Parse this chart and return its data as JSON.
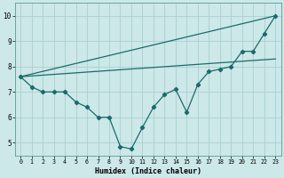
{
  "xlabel": "Humidex (Indice chaleur)",
  "ylabel": "",
  "bg_color": "#cce8e8",
  "line_color": "#1a6b6b",
  "grid_color": "#aad0d0",
  "xlim": [
    -0.5,
    23.5
  ],
  "ylim": [
    4.5,
    10.5
  ],
  "xticks": [
    0,
    1,
    2,
    3,
    4,
    5,
    6,
    7,
    8,
    9,
    10,
    11,
    12,
    13,
    14,
    15,
    16,
    17,
    18,
    19,
    20,
    21,
    22,
    23
  ],
  "yticks": [
    5,
    6,
    7,
    8,
    9,
    10
  ],
  "line1_x": [
    0,
    1,
    2,
    3,
    4,
    5,
    6,
    7,
    8,
    9,
    10,
    11,
    12,
    13,
    14,
    15,
    16,
    17,
    18,
    19,
    20,
    21,
    22,
    23
  ],
  "line1_y": [
    7.6,
    7.2,
    7.0,
    7.0,
    7.0,
    6.6,
    6.4,
    6.0,
    6.0,
    4.85,
    4.75,
    5.6,
    6.4,
    6.9,
    7.1,
    6.2,
    7.3,
    7.8,
    7.9,
    8.0,
    8.6,
    8.6,
    9.3,
    10.0
  ],
  "line2_x": [
    0,
    23
  ],
  "line2_y": [
    7.6,
    10.0
  ],
  "line3_x": [
    0,
    23
  ],
  "line3_y": [
    7.6,
    8.3
  ]
}
